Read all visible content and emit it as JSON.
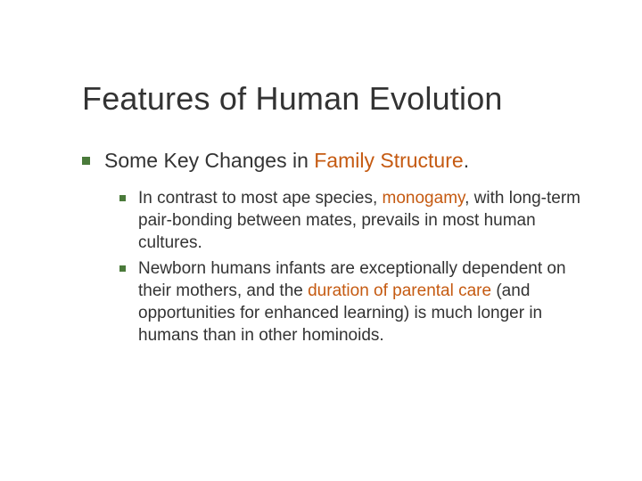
{
  "slide": {
    "title": "Features of Human Evolution",
    "title_color": "#333333",
    "title_fontsize": 36,
    "background_color": "#ffffff",
    "bullet_color": "#4a7a3a",
    "highlight_color": "#c55a11",
    "body_color": "#333333",
    "level1": {
      "text_before": "Some Key Changes in ",
      "highlight": "Family Structure",
      "text_after": ".",
      "fontsize": 23
    },
    "level2": [
      {
        "parts": [
          {
            "text": "In contrast to most ape species, ",
            "highlight": false
          },
          {
            "text": "monogamy",
            "highlight": true
          },
          {
            "text": ", with long-term pair-bonding between mates, prevails in most human cultures.",
            "highlight": false
          }
        ]
      },
      {
        "parts": [
          {
            "text": "Newborn humans infants are exceptionally dependent on their mothers, and the ",
            "highlight": false
          },
          {
            "text": "duration of parental care",
            "highlight": true
          },
          {
            "text": " (and opportunities for enhanced learning) is much longer in humans than in other hominoids.",
            "highlight": false
          }
        ]
      }
    ],
    "level2_fontsize": 19
  }
}
